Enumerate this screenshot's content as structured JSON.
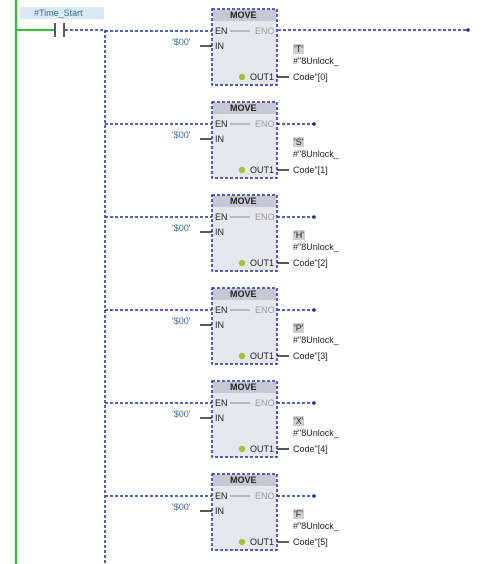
{
  "rung": {
    "contact_label": "#Time_Start"
  },
  "blocks": [
    {
      "title": "MOVE",
      "en": "EN",
      "eno": "ENO",
      "in": "IN",
      "out1": "OUT1",
      "in_value": "'$00'",
      "out_char": "'T'",
      "out_line1": "#\"8Unlock_",
      "out_line2": "Code\"[0]"
    },
    {
      "title": "MOVE",
      "en": "EN",
      "eno": "ENO",
      "in": "IN",
      "out1": "OUT1",
      "in_value": "'$00'",
      "out_char": "'S'",
      "out_line1": "#\"8Unlock_",
      "out_line2": "Code\"[1]"
    },
    {
      "title": "MOVE",
      "en": "EN",
      "eno": "ENO",
      "in": "IN",
      "out1": "OUT1",
      "in_value": "'$00'",
      "out_char": "'H'",
      "out_line1": "#\"8Unlock_",
      "out_line2": "Code\"[2]"
    },
    {
      "title": "MOVE",
      "en": "EN",
      "eno": "ENO",
      "in": "IN",
      "out1": "OUT1",
      "in_value": "'$00'",
      "out_char": "'P'",
      "out_line1": "#\"8Unlock_",
      "out_line2": "Code\"[3]"
    },
    {
      "title": "MOVE",
      "en": "EN",
      "eno": "ENO",
      "in": "IN",
      "out1": "OUT1",
      "in_value": "'$00'",
      "out_char": "'X'",
      "out_line1": "#\"8Unlock_",
      "out_line2": "Code\"[4]"
    },
    {
      "title": "MOVE",
      "en": "EN",
      "eno": "ENO",
      "in": "IN",
      "out1": "OUT1",
      "in_value": "'$00'",
      "out_char": "'F'",
      "out_line1": "#\"8Unlock_",
      "out_line2": "Code\"[5]"
    }
  ],
  "colors": {
    "power_rail": "#3cbf3c",
    "wire": "#1f2fa8",
    "block_fill": "#e6e6ef",
    "block_header": "#c8c8d4",
    "star": "#a8c23a"
  }
}
